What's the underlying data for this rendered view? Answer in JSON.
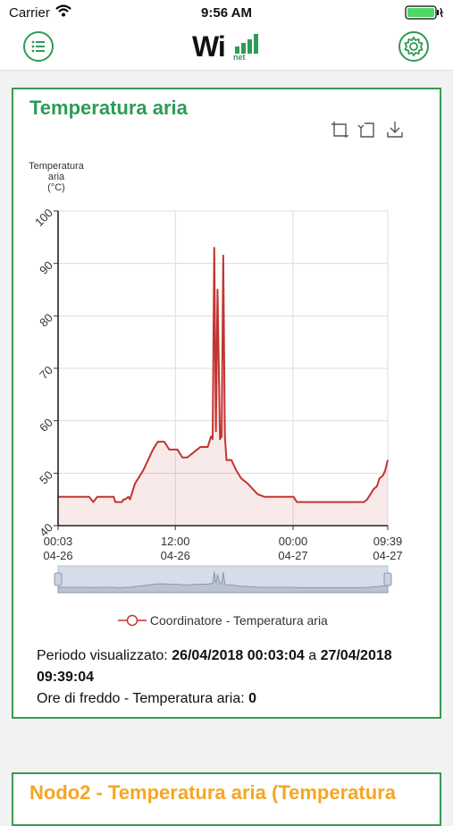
{
  "status_bar": {
    "carrier": "Carrier",
    "time": "9:56 AM"
  },
  "nav": {
    "menu_icon": "hamburger-icon",
    "settings_icon": "gear-icon",
    "logo_main": "Wi",
    "logo_sub": "net"
  },
  "colors": {
    "green": "#2e9b57",
    "orange": "#f5a623",
    "series": "#c23531"
  },
  "card": {
    "title": "Temperatura aria",
    "tools": [
      "zoom-area-icon",
      "zoom-reset-icon",
      "download-icon"
    ],
    "legend": "Coordinatore - Temperatura aria",
    "period_label": "Periodo visualizzato: ",
    "period_from": "26/04/2018 00:03:04",
    "period_sep": " a ",
    "period_to": "27/04/2018 09:39:04",
    "cold_label": "Ore di freddo - Temperatura aria: ",
    "cold_value": "0"
  },
  "chart_data": {
    "type": "area",
    "ylabel_lines": [
      "Temperatura",
      "aria",
      "(°C)"
    ],
    "ylim": [
      40,
      100
    ],
    "yticks": [
      "40",
      "50",
      "60",
      "70",
      "80",
      "90",
      "100"
    ],
    "x_ticks": [
      {
        "time": "00:03",
        "date": "04-26",
        "t": 0
      },
      {
        "time": "12:00",
        "date": "04-26",
        "t": 717
      },
      {
        "time": "00:00",
        "date": "04-27",
        "t": 1437
      },
      {
        "time": "09:39",
        "date": "04-27",
        "t": 2016
      }
    ],
    "xlim": [
      0,
      2016
    ],
    "grid": true,
    "legend_position": "bottom",
    "series": [
      {
        "name": "Coordinatore - Temperatura aria",
        "points": [
          [
            0,
            45.5
          ],
          [
            190,
            45.5
          ],
          [
            215,
            44.5
          ],
          [
            240,
            45.5
          ],
          [
            340,
            45.5
          ],
          [
            350,
            44.5
          ],
          [
            390,
            44.5
          ],
          [
            400,
            45.0
          ],
          [
            410,
            45.0
          ],
          [
            430,
            45.5
          ],
          [
            440,
            45.0
          ],
          [
            460,
            47.0
          ],
          [
            470,
            48.0
          ],
          [
            490,
            49.0
          ],
          [
            520,
            50.5
          ],
          [
            550,
            52.5
          ],
          [
            580,
            54.5
          ],
          [
            610,
            56.0
          ],
          [
            650,
            56.0
          ],
          [
            680,
            54.5
          ],
          [
            730,
            54.5
          ],
          [
            760,
            53.0
          ],
          [
            790,
            53.0
          ],
          [
            810,
            53.5
          ],
          [
            850,
            54.5
          ],
          [
            870,
            55.0
          ],
          [
            915,
            55.0
          ],
          [
            935,
            57.0
          ],
          [
            945,
            56.5
          ],
          [
            955,
            93.0
          ],
          [
            965,
            58.0
          ],
          [
            975,
            85.0
          ],
          [
            990,
            56.5
          ],
          [
            1000,
            57.0
          ],
          [
            1010,
            91.5
          ],
          [
            1020,
            57.0
          ],
          [
            1030,
            52.5
          ],
          [
            1060,
            52.5
          ],
          [
            1090,
            50.5
          ],
          [
            1120,
            49.0
          ],
          [
            1160,
            48.0
          ],
          [
            1190,
            47.0
          ],
          [
            1220,
            46.0
          ],
          [
            1260,
            45.5
          ],
          [
            1440,
            45.5
          ],
          [
            1460,
            44.5
          ],
          [
            1870,
            44.5
          ],
          [
            1890,
            45.0
          ],
          [
            1910,
            46.0
          ],
          [
            1930,
            47.0
          ],
          [
            1950,
            47.5
          ],
          [
            1965,
            49.0
          ],
          [
            1985,
            49.5
          ],
          [
            2000,
            50.5
          ],
          [
            2016,
            52.5
          ]
        ]
      }
    ]
  },
  "card2": {
    "title": "Nodo2 -  Temperatura aria (Temperatura"
  }
}
